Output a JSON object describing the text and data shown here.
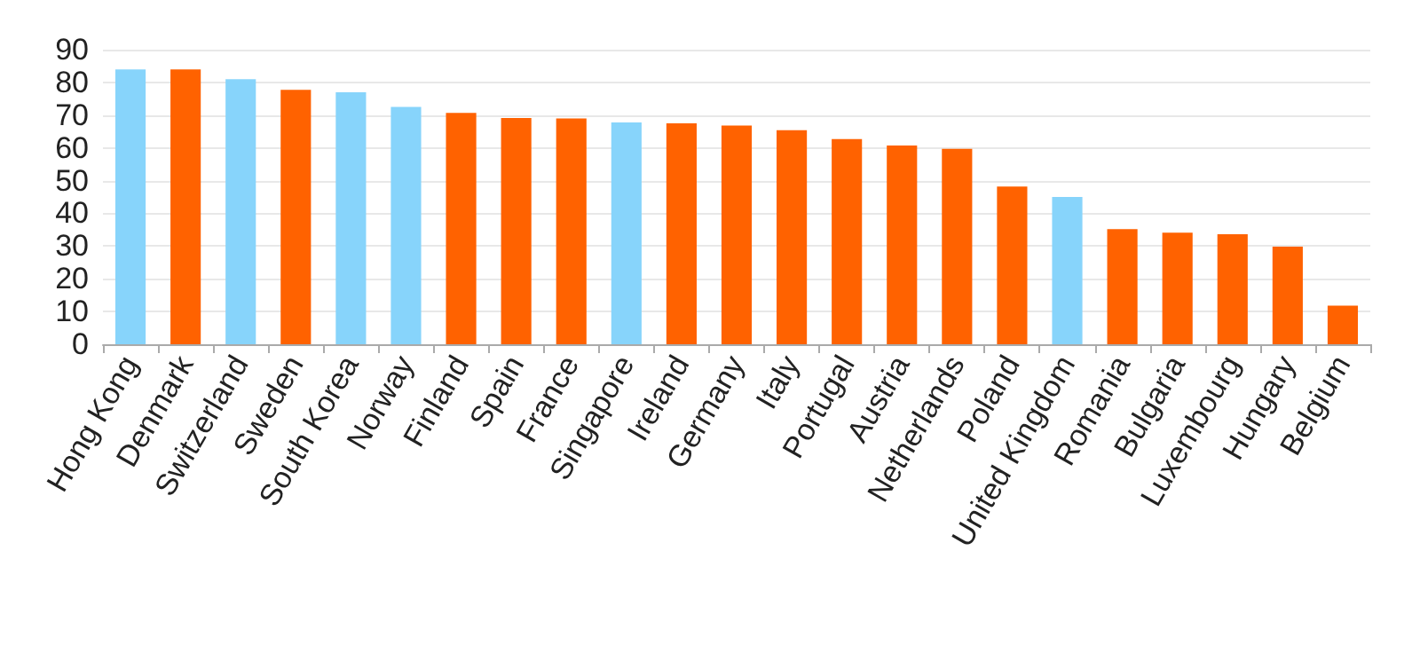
{
  "chart_data": {
    "type": "bar",
    "categories": [
      "Hong Kong",
      "Denmark",
      "Switzerland",
      "Sweden",
      "South Korea",
      "Norway",
      "Finland",
      "Spain",
      "France",
      "Singapore",
      "Ireland",
      "Germany",
      "Italy",
      "Portugal",
      "Austria",
      "Netherlands",
      "Poland",
      "United Kingdom",
      "Romania",
      "Bulgaria",
      "Luxembourg",
      "Hungary",
      "Belgium"
    ],
    "values": [
      84,
      84,
      81,
      77.7,
      77,
      72.5,
      70.7,
      69.1,
      69,
      67.8,
      67.5,
      66.8,
      65.4,
      62.7,
      60.7,
      59.7,
      48.2,
      45,
      35.2,
      34.1,
      33.6,
      29.8,
      11.8
    ],
    "colors": [
      "#87d4fb",
      "#ff6200",
      "#87d4fb",
      "#ff6200",
      "#87d4fb",
      "#87d4fb",
      "#ff6200",
      "#ff6200",
      "#ff6200",
      "#87d4fb",
      "#ff6200",
      "#ff6200",
      "#ff6200",
      "#ff6200",
      "#ff6200",
      "#ff6200",
      "#ff6200",
      "#87d4fb",
      "#ff6200",
      "#ff6200",
      "#ff6200",
      "#ff6200",
      "#ff6200"
    ],
    "ylim": [
      0,
      90
    ],
    "yticks": [
      0,
      10,
      20,
      30,
      40,
      50,
      60,
      70,
      80,
      90
    ],
    "grid": "y"
  }
}
